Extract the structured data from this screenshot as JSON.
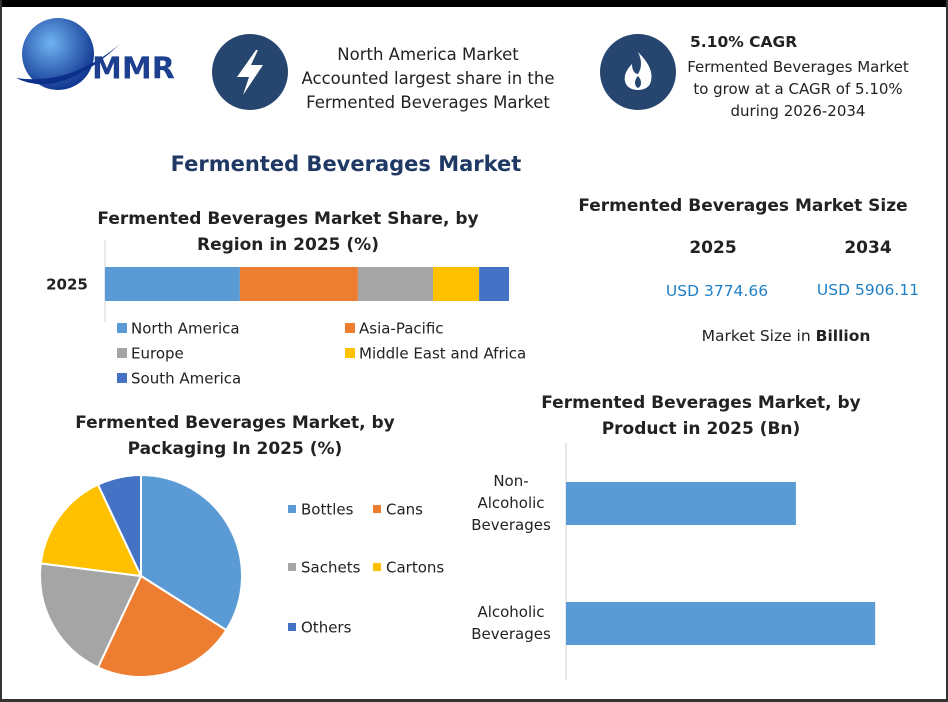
{
  "logo": "MMR",
  "highlights": [
    {
      "text": "North America Market Accounted largest share in the Fermented Beverages Market"
    },
    {
      "title": "5.10% CAGR",
      "text": "Fermented Beverages Market to grow at a CAGR of 5.10% during 2026-2034"
    }
  ],
  "title": "Fermented Beverages Market",
  "market_size": {
    "title": "Fermented Beverages Market Size",
    "years": [
      "2025",
      "2034"
    ],
    "values": [
      "USD 3774.66",
      "USD 5906.11"
    ],
    "note": "Market Size in",
    "unit": "Billion"
  },
  "chart_data": [
    {
      "type": "stacked_bar",
      "title": "Fermented Beverages Market Share, by Region in 2025 (%)",
      "categories": [
        "2025"
      ],
      "xlim": [
        0,
        100
      ],
      "series": [
        {
          "name": "North America",
          "color": "#5b9bd5",
          "values": [
            33.4
          ]
        },
        {
          "name": "Asia-Pacific",
          "color": "#ed7d31",
          "values": [
            29.2
          ]
        },
        {
          "name": "Europe",
          "color": "#a5a5a5",
          "values": [
            18.6
          ]
        },
        {
          "name": "Middle East and Africa",
          "color": "#ffc000",
          "values": [
            11.4
          ]
        },
        {
          "name": "South America",
          "color": "#4472c4",
          "values": [
            7.4
          ]
        }
      ]
    },
    {
      "type": "pie",
      "title": "Fermented Beverages Market, by Packaging In 2025 (%)",
      "categories": [
        "Bottles",
        "Cans",
        "Sachets",
        "Cartons",
        "Others"
      ],
      "values": [
        34,
        23,
        20,
        16,
        7
      ],
      "colors": [
        "#5b9bd5",
        "#ed7d31",
        "#a5a5a5",
        "#ffc000",
        "#4472c4"
      ]
    },
    {
      "type": "bar",
      "title": "Fermented Beverages Market, by Product in 2025 (Bn)",
      "categories": [
        "Non-Alcoholic Beverages",
        "Alcoholic Beverages"
      ],
      "values": [
        1610,
        2165
      ],
      "color": "#5b9bd5",
      "xlim": [
        0,
        2500
      ]
    }
  ]
}
